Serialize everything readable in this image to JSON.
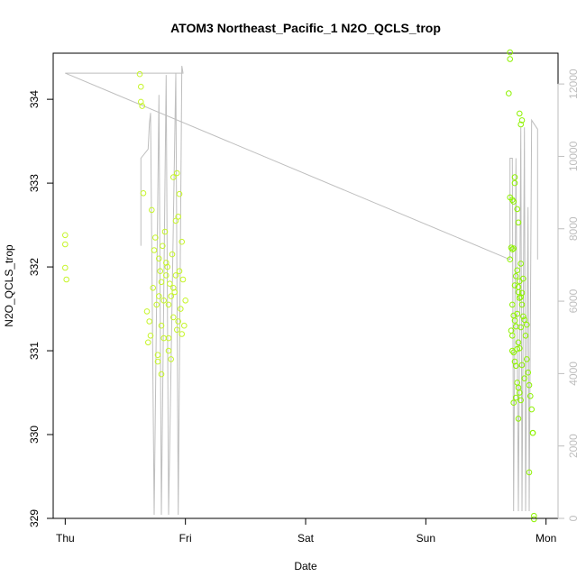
{
  "chart_data": {
    "type": "scatter",
    "title": "ATOM3 Northeast_Pacific_1 N2O_QCLS_trop",
    "xlabel": "Date",
    "ylabel": "N2O_QCLS_trop",
    "x_tick_labels": [
      "Thu",
      "Fri",
      "Sat",
      "Sun",
      "Mon"
    ],
    "x_tick_values": [
      0,
      1,
      2,
      3,
      4
    ],
    "xlim": [
      -0.1,
      4.1
    ],
    "ylim": [
      329,
      334.55
    ],
    "y_ticks": [
      329,
      330,
      331,
      332,
      333,
      334
    ],
    "y2_ticks": [
      0,
      2000,
      4000,
      6000,
      8000,
      10000,
      12000
    ],
    "y2lim": [
      0,
      12850
    ],
    "colors": {
      "series_a": "#c6f529",
      "series_b": "#8ef200",
      "altitude_line": "#bebebe",
      "secondary_axis": "#bebebe",
      "axes": "#000000"
    },
    "series": [
      {
        "values": [
          [
            0.0,
            332.38
          ],
          [
            0.0,
            332.27
          ],
          [
            0.0,
            331.99
          ],
          [
            0.01,
            331.85
          ],
          [
            0.62,
            334.3
          ],
          [
            0.63,
            334.15
          ],
          [
            0.63,
            333.97
          ],
          [
            0.64,
            333.92
          ],
          [
            0.65,
            332.88
          ],
          [
            0.68,
            331.47
          ],
          [
            0.69,
            331.1
          ],
          [
            0.7,
            331.35
          ],
          [
            0.71,
            331.18
          ],
          [
            0.72,
            332.68
          ],
          [
            0.73,
            331.75
          ],
          [
            0.74,
            332.2
          ],
          [
            0.75,
            332.35
          ],
          [
            0.76,
            331.55
          ],
          [
            0.77,
            330.87
          ],
          [
            0.77,
            330.95
          ],
          [
            0.78,
            331.65
          ],
          [
            0.78,
            332.1
          ],
          [
            0.79,
            331.95
          ],
          [
            0.8,
            331.3
          ],
          [
            0.8,
            330.72
          ],
          [
            0.81,
            332.25
          ],
          [
            0.82,
            331.6
          ],
          [
            0.83,
            332.42
          ],
          [
            0.84,
            331.9
          ],
          [
            0.85,
            332.0
          ],
          [
            0.86,
            331.0
          ],
          [
            0.86,
            331.15
          ],
          [
            0.87,
            331.8
          ],
          [
            0.88,
            330.9
          ],
          [
            0.89,
            332.15
          ],
          [
            0.9,
            333.07
          ],
          [
            0.9,
            331.4
          ],
          [
            0.91,
            331.7
          ],
          [
            0.92,
            332.55
          ],
          [
            0.93,
            333.12
          ],
          [
            0.93,
            331.25
          ],
          [
            0.94,
            332.6
          ],
          [
            0.95,
            331.95
          ],
          [
            0.95,
            332.87
          ],
          [
            0.96,
            331.5
          ],
          [
            0.97,
            332.3
          ],
          [
            0.97,
            331.2
          ],
          [
            0.98,
            331.85
          ],
          [
            0.99,
            331.3
          ],
          [
            1.0,
            331.6
          ],
          [
            0.84,
            332.05
          ],
          [
            0.8,
            331.82
          ],
          [
            0.86,
            331.55
          ],
          [
            0.92,
            331.9
          ],
          [
            0.88,
            331.65
          ],
          [
            0.94,
            331.35
          ],
          [
            0.82,
            331.15
          ],
          [
            0.9,
            331.75
          ]
        ]
      },
      {
        "values": [
          [
            3.7,
            334.56
          ],
          [
            3.7,
            334.48
          ],
          [
            3.69,
            334.07
          ],
          [
            3.7,
            332.83
          ],
          [
            3.72,
            332.8
          ],
          [
            3.73,
            332.78
          ],
          [
            3.74,
            333.07
          ],
          [
            3.74,
            333.0
          ],
          [
            3.71,
            332.23
          ],
          [
            3.72,
            332.21
          ],
          [
            3.7,
            332.09
          ],
          [
            3.73,
            332.22
          ],
          [
            3.76,
            332.69
          ],
          [
            3.77,
            332.53
          ],
          [
            3.78,
            333.83
          ],
          [
            3.79,
            333.7
          ],
          [
            3.8,
            333.75
          ],
          [
            3.79,
            332.04
          ],
          [
            3.78,
            331.83
          ],
          [
            3.77,
            331.76
          ],
          [
            3.75,
            331.89
          ],
          [
            3.74,
            331.78
          ],
          [
            3.76,
            331.96
          ],
          [
            3.77,
            331.7
          ],
          [
            3.78,
            331.63
          ],
          [
            3.79,
            331.64
          ],
          [
            3.8,
            331.69
          ],
          [
            3.81,
            331.86
          ],
          [
            3.72,
            331.55
          ],
          [
            3.73,
            331.42
          ],
          [
            3.74,
            331.36
          ],
          [
            3.71,
            331.24
          ],
          [
            3.72,
            331.18
          ],
          [
            3.75,
            331.29
          ],
          [
            3.76,
            331.44
          ],
          [
            3.77,
            331.1
          ],
          [
            3.78,
            331.03
          ],
          [
            3.72,
            331.0
          ],
          [
            3.73,
            330.98
          ],
          [
            3.74,
            330.87
          ],
          [
            3.75,
            330.82
          ],
          [
            3.76,
            330.62
          ],
          [
            3.77,
            330.56
          ],
          [
            3.78,
            330.5
          ],
          [
            3.79,
            330.41
          ],
          [
            3.73,
            330.38
          ],
          [
            3.75,
            330.44
          ],
          [
            3.77,
            330.19
          ],
          [
            3.81,
            331.41
          ],
          [
            3.82,
            331.37
          ],
          [
            3.83,
            331.18
          ],
          [
            3.84,
            330.9
          ],
          [
            3.85,
            330.74
          ],
          [
            3.86,
            330.59
          ],
          [
            3.87,
            330.46
          ],
          [
            3.88,
            330.3
          ],
          [
            3.89,
            330.02
          ],
          [
            3.89,
            330.02
          ],
          [
            3.86,
            329.55
          ],
          [
            3.9,
            329.03
          ],
          [
            3.9,
            328.99
          ],
          [
            3.8,
            330.83
          ],
          [
            3.82,
            330.67
          ],
          [
            3.84,
            331.31
          ],
          [
            3.79,
            331.28
          ],
          [
            3.76,
            331.02
          ],
          [
            3.8,
            331.55
          ]
        ]
      }
    ],
    "altitude_line": [
      [
        0.63,
        7530
      ],
      [
        0.63,
        9950
      ],
      [
        0.69,
        10200
      ],
      [
        0.7,
        10900
      ],
      [
        0.71,
        11200
      ],
      [
        0.74,
        100
      ],
      [
        0.74,
        100
      ],
      [
        0.78,
        11700
      ],
      [
        0.8,
        100
      ],
      [
        0.84,
        12250
      ],
      [
        0.86,
        100
      ],
      [
        0.92,
        12300
      ],
      [
        0.94,
        100
      ],
      [
        0.97,
        12500
      ],
      [
        0.98,
        12300
      ],
      [
        0.0,
        12300
      ],
      [
        3.7,
        7150
      ],
      [
        3.7,
        9950
      ],
      [
        3.72,
        9950
      ],
      [
        3.73,
        200
      ],
      [
        3.75,
        9950
      ],
      [
        3.77,
        200
      ],
      [
        3.79,
        10800
      ],
      [
        3.8,
        200
      ],
      [
        3.82,
        10800
      ],
      [
        3.83,
        200
      ],
      [
        3.85,
        8600
      ],
      [
        3.86,
        200
      ],
      [
        3.88,
        11000
      ],
      [
        3.93,
        10750
      ],
      [
        3.93,
        7150
      ]
    ]
  }
}
